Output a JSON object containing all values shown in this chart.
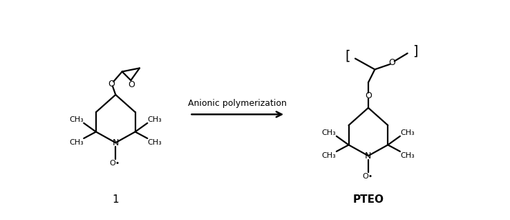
{
  "background_color": "#ffffff",
  "arrow_label": "Anionic polymerization",
  "label_1": "1",
  "label_2": "PTEO",
  "lw": 1.6,
  "fontsize_N": 9,
  "fontsize_groups": 8,
  "fontsize_arrow": 9,
  "fontsize_label": 11,
  "fontsize_bracket": 14
}
